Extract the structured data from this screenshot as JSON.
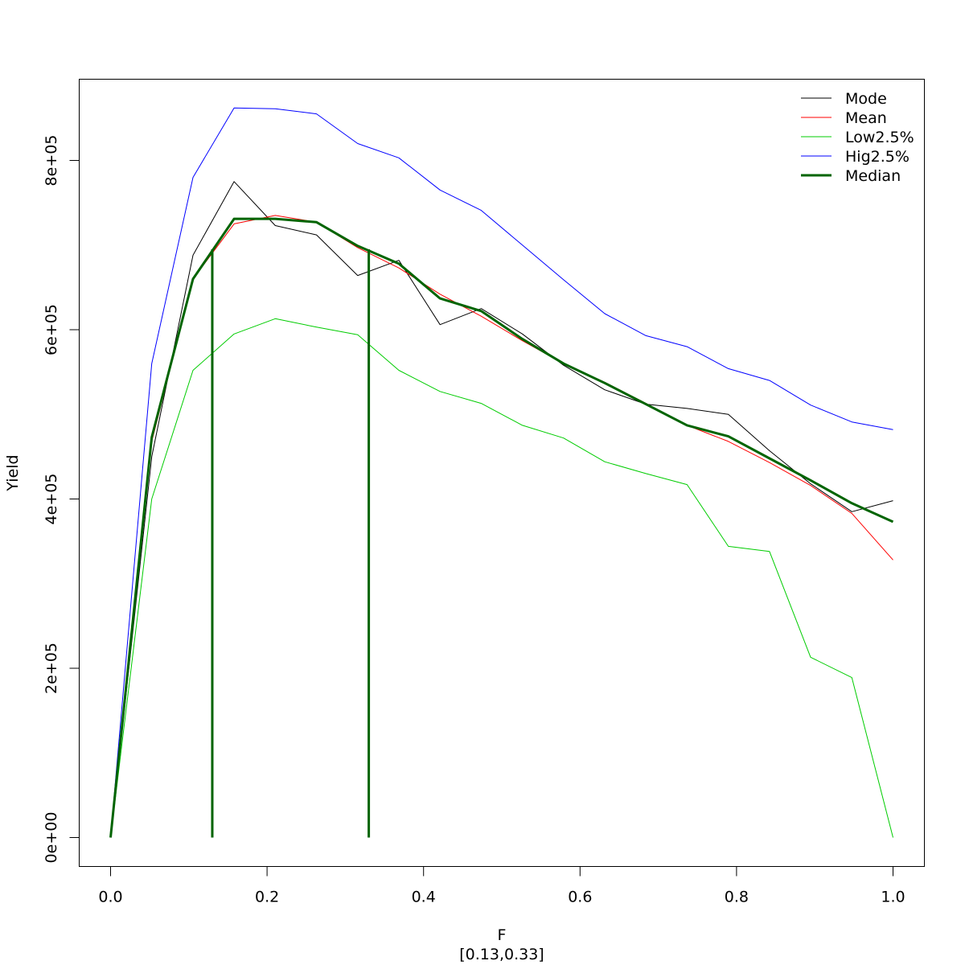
{
  "chart_data": {
    "type": "line",
    "title": "",
    "xlabel": "F",
    "subtitle": "[0.13,0.33]",
    "ylabel": "Yield",
    "xlim": [
      0,
      1
    ],
    "ylim": [
      0,
      880000
    ],
    "x_ticks": [
      0.0,
      0.2,
      0.4,
      0.6,
      0.8,
      1.0
    ],
    "x_tick_labels": [
      "0.0",
      "0.2",
      "0.4",
      "0.6",
      "0.8",
      "1.0"
    ],
    "y_ticks": [
      0,
      200000,
      400000,
      600000,
      800000
    ],
    "y_tick_labels": [
      "0e+00",
      "2e+05",
      "4e+05",
      "6e+05",
      "8e+05"
    ],
    "grid": false,
    "legend_position": "top-right",
    "x": [
      0.0,
      0.0526,
      0.1053,
      0.1579,
      0.2105,
      0.2632,
      0.3158,
      0.3684,
      0.4211,
      0.4737,
      0.5263,
      0.5789,
      0.6316,
      0.6842,
      0.7368,
      0.7895,
      0.8421,
      0.8947,
      0.9474,
      1.0
    ],
    "series": [
      {
        "name": "Mode",
        "color": "#000000",
        "width": 1,
        "values": [
          0,
          450000,
          688000,
          775000,
          723000,
          712000,
          664000,
          682000,
          606000,
          625000,
          595000,
          558000,
          529000,
          512000,
          507000,
          500000,
          457000,
          418000,
          385000,
          398000
        ]
      },
      {
        "name": "Mean",
        "color": "#ff0000",
        "width": 1,
        "values": [
          0,
          468000,
          660000,
          725000,
          735000,
          727000,
          697000,
          673000,
          642000,
          616000,
          587000,
          560000,
          538000,
          513000,
          487000,
          468000,
          443000,
          416000,
          383000,
          328000
        ]
      },
      {
        "name": "Low2.5%",
        "color": "#00cc00",
        "width": 1,
        "values": [
          0,
          400000,
          552000,
          595000,
          613000,
          603000,
          594000,
          552000,
          527000,
          513000,
          487000,
          472000,
          444000,
          430000,
          417000,
          344000,
          338000,
          213000,
          189000,
          0
        ]
      },
      {
        "name": "Hig2.5%",
        "color": "#0000ff",
        "width": 1,
        "values": [
          0,
          560000,
          780000,
          862000,
          861000,
          855000,
          820000,
          803000,
          765000,
          741000,
          700000,
          659000,
          619000,
          593000,
          580000,
          554000,
          540000,
          511000,
          491000,
          482000
        ]
      },
      {
        "name": "Median",
        "color": "#006400",
        "width": 3,
        "values": [
          0,
          473000,
          660000,
          731000,
          731000,
          727000,
          699000,
          678000,
          637000,
          622000,
          589000,
          560000,
          537000,
          512000,
          487000,
          474000,
          448000,
          422000,
          395000,
          373000
        ]
      }
    ],
    "vertical_lines": {
      "color": "#006400",
      "width": 3,
      "lines": [
        {
          "x": 0.13,
          "y_top": 695000
        },
        {
          "x": 0.33,
          "y_top": 695000
        }
      ]
    }
  }
}
